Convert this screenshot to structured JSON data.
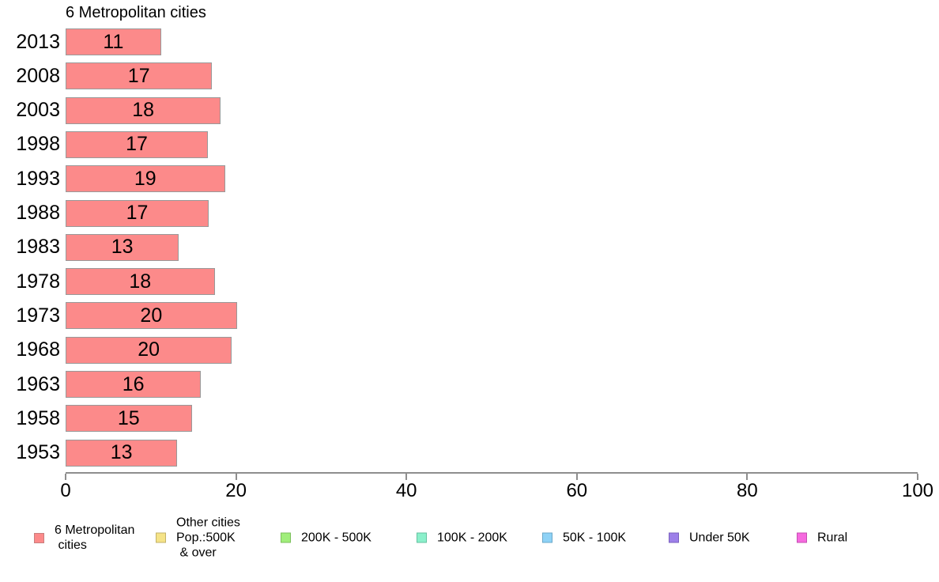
{
  "title": "6 Metropolitan cities",
  "chart_data": {
    "type": "bar",
    "orientation": "horizontal",
    "title": "6 Metropolitan cities",
    "series_name": "6 Metropolitan cities",
    "categories": [
      "2013",
      "2008",
      "2003",
      "1998",
      "1993",
      "1988",
      "1983",
      "1978",
      "1973",
      "1968",
      "1963",
      "1958",
      "1953"
    ],
    "values": [
      11.2,
      17.2,
      18.2,
      16.7,
      18.7,
      16.8,
      13.3,
      17.5,
      20.1,
      19.5,
      15.9,
      14.8,
      13.1
    ],
    "bar_labels": [
      "11",
      "17",
      "18",
      "17",
      "19",
      "17",
      "13",
      "18",
      "20",
      "20",
      "16",
      "15",
      "13"
    ],
    "xlabel": "",
    "ylabel": "",
    "xlim": [
      0,
      100
    ],
    "x_ticks": [
      0,
      20,
      40,
      60,
      80,
      100
    ],
    "grid": false,
    "legend_position": "bottom",
    "bar_color": "#FC8A8A",
    "bar_border_color": "#999999",
    "axis_color": "#8E8E8E",
    "text_color": "#000000"
  },
  "legend": {
    "items": [
      {
        "label": "6 Metropolitan\n cities",
        "color": "#FC8A8A",
        "border_color": "#C97E7E"
      },
      {
        "label": "Other cities\nPop.:500K\n & over",
        "color": "#F5E387",
        "border_color": "#C2B269"
      },
      {
        "label": "200K - 500K",
        "color": "#A0EE7B",
        "border_color": "#7CBF5D"
      },
      {
        "label": "100K - 200K",
        "color": "#8BF0CB",
        "border_color": "#66C2A1"
      },
      {
        "label": "50K - 100K",
        "color": "#8ED2F6",
        "border_color": "#6BA8C9"
      },
      {
        "label": "Under 50K",
        "color": "#9D80E9",
        "border_color": "#7A61BE"
      },
      {
        "label": "Rural",
        "color": "#F669DF",
        "border_color": "#C44EB2"
      }
    ]
  }
}
